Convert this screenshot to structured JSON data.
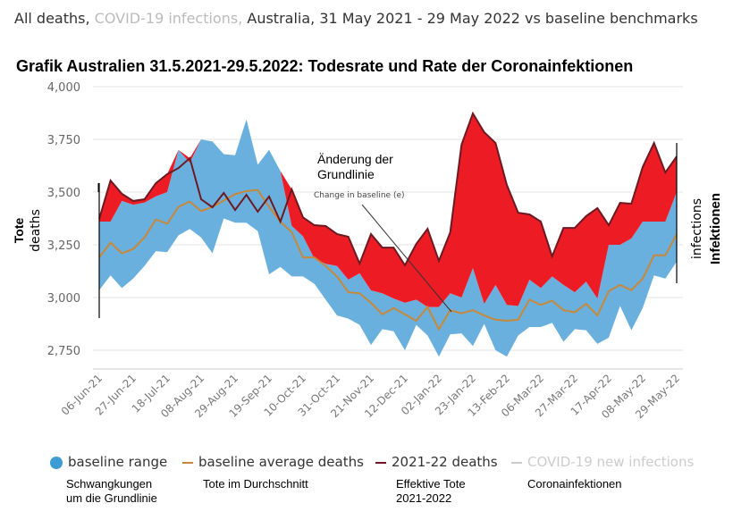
{
  "header": {
    "part1": "All deaths,",
    "part2": "COVID-19 infections,",
    "part3": "Australia, 31 May 2021 - 29 May 2022 vs baseline benchmarks"
  },
  "subtitle": "Grafik Australien 31.5.2021-29.5.2022: Todesrate und Rate der Coronainfektionen",
  "annotation": {
    "de_line1": "Änderung der",
    "de_line2": "Grundlinie",
    "en": "Change in baseline (e)"
  },
  "legend": {
    "baseline_range": "baseline range",
    "baseline_avg": "baseline average deaths",
    "deaths": "2021-22 deaths",
    "infections": "COVID-19 new infections",
    "note_range_1": "Schwangkungen",
    "note_range_2": "um die Grundlinie",
    "note_avg": "Tote im Durchschnitt",
    "note_deaths_1": "Effektive Tote",
    "note_deaths_2": "2021-2022",
    "note_infections": "Coronainfektionen"
  },
  "colors": {
    "band": "#6ab0de",
    "excess": "#ed1c24",
    "deaths_line": "#6b1a22",
    "avg_line": "#c8883a",
    "infections": "#cccccc",
    "grid": "#e3e3e3"
  },
  "chart_data": {
    "type": "area",
    "ylabel_de": "Tote",
    "ylabel_en": "deaths",
    "y2label_en": "infections",
    "y2label_de": "Infektionen",
    "ylim": [
      2750,
      4000
    ],
    "yticks": [
      "2,750",
      "3,000",
      "3,250",
      "3,500",
      "3,750",
      "4,000"
    ],
    "ytick_values": [
      2750,
      3000,
      3250,
      3500,
      3750,
      4000
    ],
    "grid": true,
    "legend": "bottom",
    "x": [
      "06-Jun-21",
      "13-Jun-21",
      "20-Jun-21",
      "27-Jun-21",
      "04-Jul-21",
      "11-Jul-21",
      "18-Jul-21",
      "25-Jul-21",
      "01-Aug-21",
      "08-Aug-21",
      "15-Aug-21",
      "22-Aug-21",
      "29-Aug-21",
      "05-Sep-21",
      "12-Sep-21",
      "19-Sep-21",
      "26-Sep-21",
      "03-Oct-21",
      "10-Oct-21",
      "17-Oct-21",
      "24-Oct-21",
      "31-Oct-21",
      "07-Nov-21",
      "14-Nov-21",
      "21-Nov-21",
      "28-Nov-21",
      "05-Dec-21",
      "12-Dec-21",
      "19-Dec-21",
      "26-Dec-21",
      "02-Jan-22",
      "09-Jan-22",
      "16-Jan-22",
      "23-Jan-22",
      "30-Jan-22",
      "06-Feb-22",
      "13-Feb-22",
      "20-Feb-22",
      "27-Feb-22",
      "06-Mar-22",
      "13-Mar-22",
      "20-Mar-22",
      "27-Mar-22",
      "03-Apr-22",
      "10-Apr-22",
      "17-Apr-22",
      "24-Apr-22",
      "01-May-22",
      "08-May-22",
      "15-May-22",
      "22-May-22",
      "29-May-22"
    ],
    "xticks": [
      "06-Jun-21",
      "27-Jun-21",
      "18-Jul-21",
      "08-Aug-21",
      "29-Aug-21",
      "19-Sep-21",
      "10-Oct-21",
      "31-Oct-21",
      "21-Nov-21",
      "12-Dec-21",
      "02-Jan-22",
      "23-Jan-22",
      "13-Feb-22",
      "06-Mar-22",
      "27-Mar-22",
      "17-Apr-22",
      "08-May-22",
      "29-May-22"
    ],
    "series": [
      {
        "name": "2021-22 deaths",
        "values": [
          3373,
          3555,
          3492,
          3458,
          3466,
          3542,
          3585,
          3614,
          3661,
          3466,
          3428,
          3496,
          3415,
          3487,
          3407,
          3479,
          3360,
          3513,
          3380,
          3343,
          3339,
          3301,
          3288,
          3161,
          3301,
          3237,
          3237,
          3153,
          3254,
          3326,
          3174,
          3309,
          3725,
          3873,
          3784,
          3733,
          3534,
          3402,
          3394,
          3360,
          3195,
          3330,
          3330,
          3386,
          3424,
          3343,
          3449,
          3445,
          3619,
          3733,
          3593,
          3669
        ]
      },
      {
        "name": "baseline average deaths",
        "values": [
          3190,
          3260,
          3210,
          3230,
          3285,
          3370,
          3350,
          3430,
          3455,
          3410,
          3430,
          3460,
          3490,
          3505,
          3510,
          3430,
          3360,
          3310,
          3190,
          3190,
          3150,
          3100,
          3025,
          3020,
          2975,
          2920,
          2950,
          2920,
          2890,
          2955,
          2850,
          2940,
          2925,
          2940,
          2915,
          2895,
          2890,
          2895,
          2990,
          2965,
          2985,
          2940,
          2930,
          2970,
          2915,
          3030,
          3060,
          3035,
          3090,
          3200,
          3200,
          3300
        ]
      },
      {
        "name": "baseline range",
        "upper": [
          3360,
          3360,
          3458,
          3440,
          3450,
          3480,
          3500,
          3700,
          3640,
          3750,
          3740,
          3680,
          3675,
          3845,
          3630,
          3700,
          3600,
          3340,
          3290,
          3185,
          3160,
          3150,
          3085,
          3115,
          3034,
          3020,
          2995,
          2975,
          2990,
          2955,
          2955,
          3020,
          3000,
          3140,
          2970,
          3060,
          2965,
          2960,
          3085,
          3045,
          3100,
          3060,
          3025,
          3075,
          2995,
          3250,
          3250,
          3280,
          3360,
          3360,
          3360,
          3500
        ],
        "lower": [
          3035,
          3105,
          3045,
          3090,
          3150,
          3220,
          3215,
          3295,
          3325,
          3285,
          3210,
          3375,
          3355,
          3355,
          3315,
          3110,
          3145,
          3100,
          3100,
          3065,
          2990,
          2915,
          2900,
          2870,
          2775,
          2850,
          2840,
          2750,
          2870,
          2820,
          2720,
          2825,
          2830,
          2770,
          2875,
          2750,
          2720,
          2820,
          2860,
          2860,
          2880,
          2790,
          2850,
          2845,
          2780,
          2810,
          2960,
          2845,
          2950,
          3105,
          3090,
          3170
        ]
      }
    ]
  }
}
